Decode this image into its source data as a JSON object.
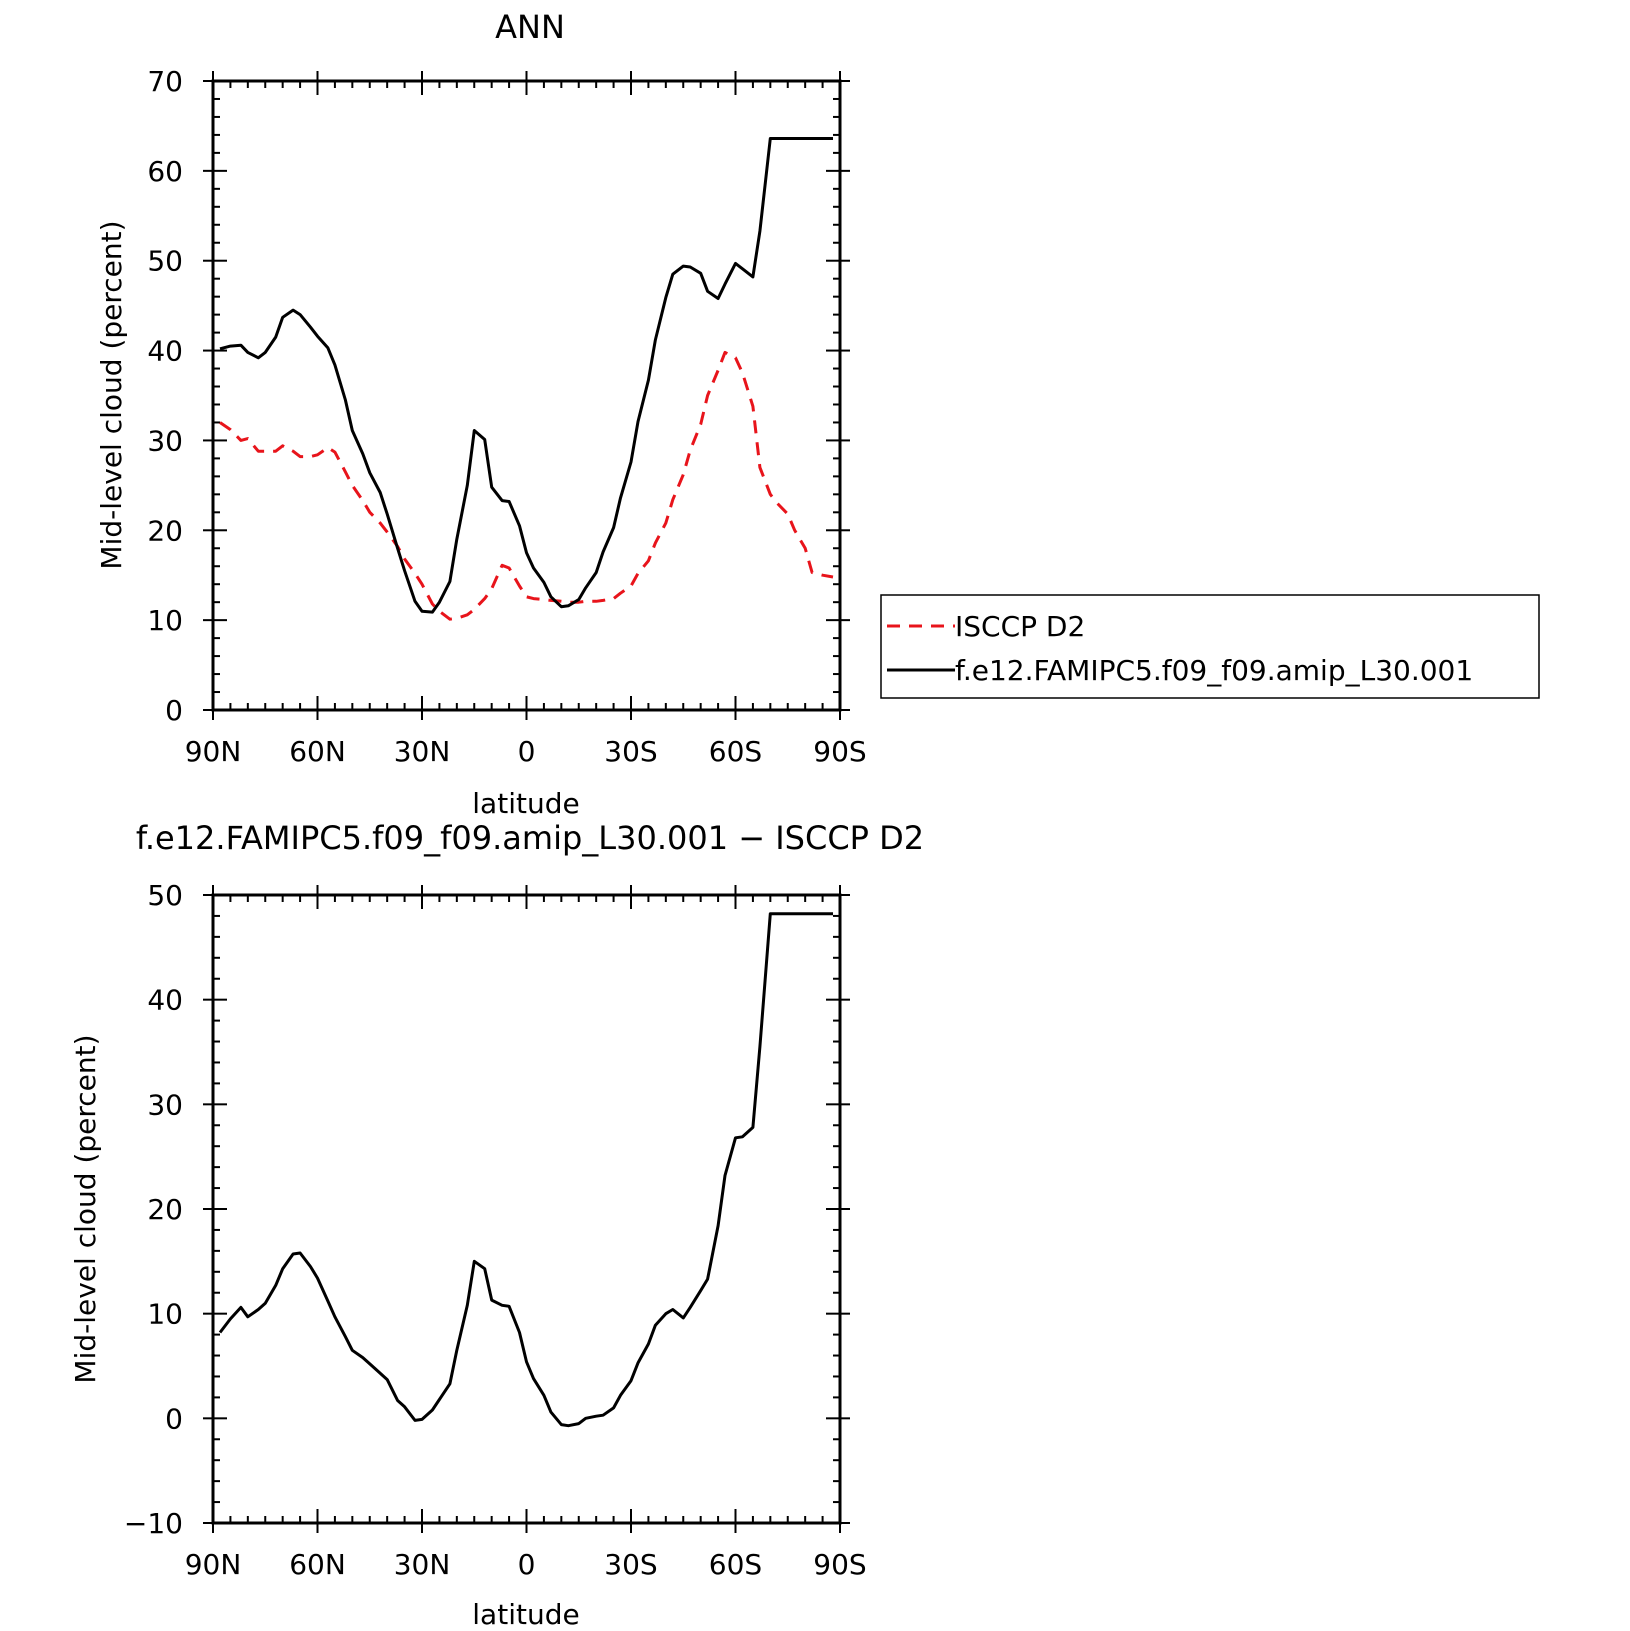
{
  "chart_data": [
    {
      "type": "line",
      "title": "ANN",
      "xlabel": "latitude",
      "ylabel": "Mid-level cloud (percent)",
      "xlim": [
        90,
        -90
      ],
      "ylim": [
        0,
        70
      ],
      "xticks": [
        90,
        60,
        30,
        0,
        -30,
        -60,
        -90
      ],
      "xtick_labels": [
        "90N",
        "60N",
        "30N",
        "0",
        "30S",
        "60S",
        "90S"
      ],
      "yticks": [
        0,
        10,
        20,
        30,
        40,
        50,
        60,
        70
      ],
      "ytick_labels": [
        "0",
        "10",
        "20",
        "30",
        "40",
        "50",
        "60",
        "70"
      ],
      "legend_position": "right",
      "series": [
        {
          "name": "ISCCP D2",
          "color": "#e8141b",
          "dash": true,
          "x": [
            88,
            85,
            82,
            80,
            77,
            75,
            72,
            70,
            67,
            65,
            62,
            60,
            57,
            55,
            52,
            50,
            47,
            45,
            42,
            40,
            37,
            35,
            32,
            30,
            27,
            25,
            22,
            20,
            17,
            15,
            12,
            10,
            7,
            5,
            2,
            0,
            -2,
            -5,
            -7,
            -10,
            -12,
            -15,
            -17,
            -20,
            -22,
            -25,
            -27,
            -30,
            -32,
            -35,
            -37,
            -40,
            -42,
            -45,
            -47,
            -50,
            -52,
            -55,
            -57,
            -60,
            -62,
            -65,
            -67,
            -70,
            -72,
            -75,
            -77,
            -80,
            -82,
            -85,
            -88
          ],
          "y": [
            32.0,
            31.2,
            30.0,
            30.2,
            28.8,
            28.8,
            28.8,
            29.4,
            28.8,
            28.2,
            28.2,
            28.4,
            29.2,
            28.7,
            26.5,
            25.0,
            23.3,
            22.0,
            20.8,
            19.8,
            18.2,
            16.8,
            15.2,
            14.0,
            11.8,
            11.0,
            10.1,
            10.2,
            10.6,
            11.2,
            12.4,
            13.5,
            16.1,
            15.8,
            13.8,
            12.6,
            12.4,
            12.3,
            12.2,
            12.1,
            12.0,
            12.0,
            12.1,
            12.1,
            12.2,
            12.4,
            13.0,
            13.8,
            15.2,
            16.6,
            18.6,
            20.8,
            23.4,
            26.2,
            28.9,
            31.8,
            35.0,
            37.8,
            39.8,
            39.2,
            37.5,
            33.8,
            27.0,
            24.0,
            23.0,
            21.8,
            20.0,
            18.0,
            15.3,
            15.0,
            14.8
          ],
          "y_note": ""
        },
        {
          "name": "f.e12.FAMIPC5.f09_f09.amip_L30.001",
          "color": "#000000",
          "dash": false,
          "x": [
            88,
            85,
            82,
            80,
            77,
            75,
            72,
            70,
            67,
            65,
            62,
            60,
            57,
            55,
            52,
            50,
            47,
            45,
            42,
            40,
            37,
            35,
            32,
            30,
            27,
            25,
            22,
            20,
            17,
            15,
            12,
            10,
            7,
            5,
            2,
            0,
            -2,
            -5,
            -7,
            -10,
            -12,
            -15,
            -17,
            -20,
            -22,
            -25,
            -27,
            -30,
            -32,
            -35,
            -37,
            -40,
            -42,
            -45,
            -47,
            -50,
            -52,
            -55,
            -57,
            -60,
            -62,
            -65,
            -67,
            -70,
            -72,
            -75,
            -77,
            -80,
            -82,
            -85,
            -88
          ],
          "y": [
            40.2,
            40.5,
            40.6,
            39.8,
            39.2,
            39.8,
            41.5,
            43.7,
            44.5,
            44.0,
            42.6,
            41.6,
            40.3,
            38.4,
            34.5,
            31.1,
            28.5,
            26.4,
            24.2,
            21.8,
            18.0,
            15.5,
            12.1,
            11.0,
            10.9,
            12.0,
            14.3,
            19.0,
            25.0,
            31.1,
            30.1,
            24.8,
            23.3,
            23.2,
            20.5,
            17.5,
            15.8,
            14.2,
            12.6,
            11.5,
            11.6,
            12.3,
            13.6,
            15.3,
            17.6,
            20.3,
            23.6,
            27.6,
            32.1,
            36.7,
            41.2,
            45.9,
            48.5,
            49.4,
            49.3,
            48.6,
            46.6,
            45.8,
            47.4,
            49.7,
            49.1,
            48.2,
            53.3,
            63.6,
            63.6,
            63.6,
            63.6,
            63.6,
            63.6,
            63.6,
            63.6
          ]
        }
      ]
    },
    {
      "type": "line",
      "title": "f.e12.FAMIPC5.f09_f09.amip_L30.001 − ISCCP D2",
      "xlabel": "latitude",
      "ylabel": "Mid-level cloud (percent)",
      "xlim": [
        90,
        -90
      ],
      "ylim": [
        -10,
        50
      ],
      "xticks": [
        90,
        60,
        30,
        0,
        -30,
        -60,
        -90
      ],
      "xtick_labels": [
        "90N",
        "60N",
        "30N",
        "0",
        "30S",
        "60S",
        "90S"
      ],
      "yticks": [
        -10,
        0,
        10,
        20,
        30,
        40,
        50
      ],
      "ytick_labels": [
        "−10",
        "0",
        "10",
        "20",
        "30",
        "40",
        "50"
      ],
      "series": [
        {
          "name": "",
          "color": "#000000",
          "dash": false,
          "x": [
            88,
            85,
            82,
            80,
            77,
            75,
            72,
            70,
            67,
            65,
            62,
            60,
            57,
            55,
            52,
            50,
            47,
            45,
            42,
            40,
            37,
            35,
            32,
            30,
            27,
            25,
            22,
            20,
            17,
            15,
            12,
            10,
            7,
            5,
            2,
            0,
            -2,
            -5,
            -7,
            -10,
            -12,
            -15,
            -17,
            -20,
            -22,
            -25,
            -27,
            -30,
            -32,
            -35,
            -37,
            -40,
            -42,
            -45,
            -47,
            -50,
            -52,
            -55,
            -57,
            -60,
            -62,
            -65,
            -67,
            -70,
            -72,
            -75,
            -77,
            -80,
            -82,
            -85,
            -88
          ],
          "y": [
            8.2,
            9.5,
            10.6,
            9.7,
            10.4,
            11.0,
            12.7,
            14.3,
            15.7,
            15.8,
            14.5,
            13.4,
            11.2,
            9.7,
            7.8,
            6.5,
            5.8,
            5.2,
            4.3,
            3.7,
            1.7,
            1.1,
            -0.2,
            -0.1,
            0.8,
            1.8,
            3.3,
            6.5,
            10.8,
            15.0,
            14.3,
            11.3,
            10.8,
            10.7,
            8.2,
            5.4,
            3.8,
            2.2,
            0.6,
            -0.6,
            -0.7,
            -0.5,
            0.0,
            0.2,
            0.3,
            1.0,
            2.2,
            3.6,
            5.3,
            7.1,
            8.9,
            10.0,
            10.4,
            9.6,
            10.6,
            12.2,
            13.3,
            18.4,
            23.2,
            26.8,
            26.9,
            27.8,
            35.5,
            48.2,
            48.2,
            48.2,
            48.2,
            48.2,
            48.2,
            48.2,
            48.2
          ]
        }
      ]
    }
  ],
  "legend": {
    "items": [
      {
        "label": "ISCCP D2",
        "color": "#e8141b",
        "dash": true
      },
      {
        "label": "f.e12.FAMIPC5.f09_f09.amip_L30.001",
        "color": "#000000",
        "dash": false
      }
    ]
  }
}
